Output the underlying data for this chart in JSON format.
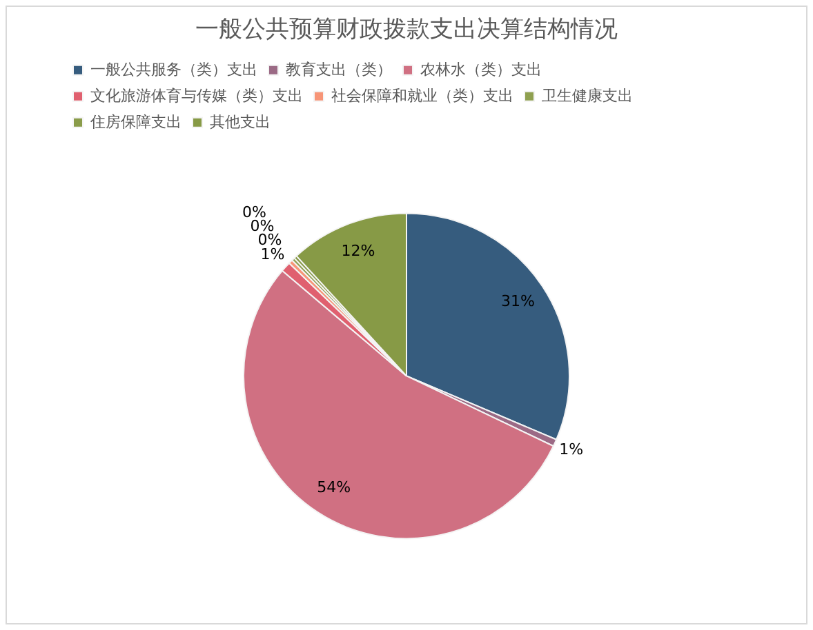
{
  "chart_data": {
    "type": "pie",
    "title": "一般公共预算财政拨款支出决算结构情况",
    "categories": [
      "一般公共服务（类）支出",
      "教育支出（类）",
      "农林水（类）支出",
      "文化旅游体育与传媒（类）支出",
      "社会保障和就业（类）支出",
      "卫生健康支出",
      "住房保障支出",
      "其他支出"
    ],
    "values": [
      31.4,
      0.7,
      54.1,
      1.0,
      0.4,
      0.3,
      0.3,
      11.8
    ],
    "colors": [
      "#365c7e",
      "#9b6a85",
      "#d07082",
      "#e0606f",
      "#f79577",
      "#8fa050",
      "#8a9c4a",
      "#879a46"
    ],
    "value_labels": [
      "31%",
      "1%",
      "54%",
      "1%",
      "0%",
      "0%",
      "0%",
      "12%"
    ],
    "legend": "top"
  }
}
